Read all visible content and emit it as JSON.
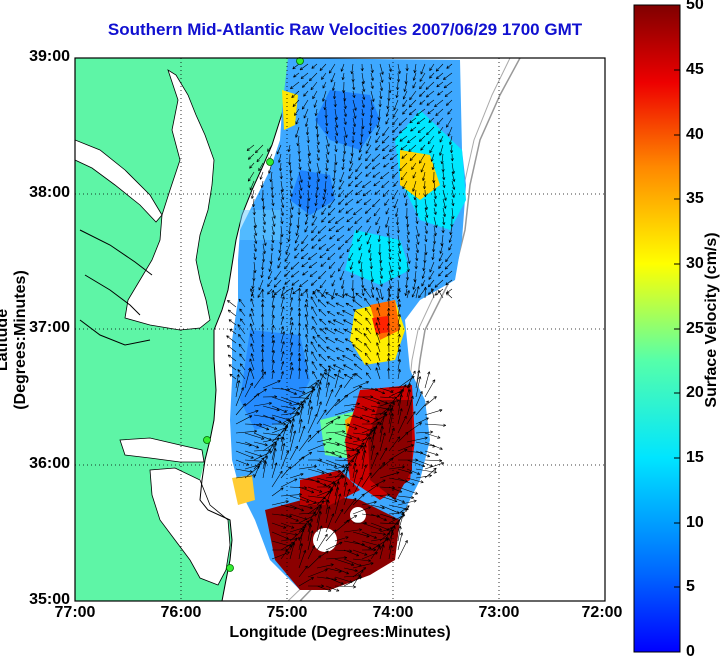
{
  "title": "Southern Mid-Atlantic Raw Velocities 2007/06/29 1700 GMT",
  "x_axis": {
    "label": "Longitude (Degrees:Minutes)",
    "ticks": [
      "77:00",
      "76:00",
      "75:00",
      "74:00",
      "73:00",
      "72:00"
    ]
  },
  "y_axis": {
    "label": "Latitude (Degrees:Minutes)",
    "ticks": [
      "39:00",
      "38:00",
      "37:00",
      "36:00",
      "35:00"
    ]
  },
  "colorbar": {
    "label": "Surface Velocity (cm/s)",
    "ticks": [
      "50",
      "45",
      "40",
      "35",
      "30",
      "25",
      "20",
      "15",
      "10",
      "5",
      "0"
    ],
    "range": [
      0,
      50
    ],
    "colormap": "jet"
  },
  "map": {
    "land_color": "#5ef5a6",
    "water_color": "#ffffff",
    "grid": "dotted",
    "station_color": "#33ee33"
  }
}
